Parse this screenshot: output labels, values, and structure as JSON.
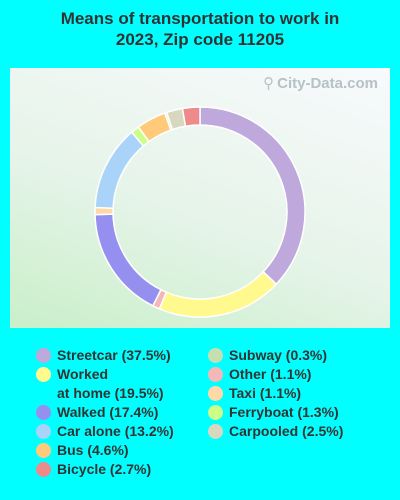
{
  "title_line1": "Means of transportation to work in",
  "title_line2": "2023, Zip code 11205",
  "watermark": "City-Data.com",
  "chart_data": {
    "type": "pie",
    "donut": true,
    "title": "Means of transportation to work in 2023, Zip code 11205",
    "slices": [
      {
        "label": "Streetcar",
        "value": 37.5,
        "color": "#BFA8DC"
      },
      {
        "label": "Worked at home",
        "value": 19.5,
        "color": "#FFF98E"
      },
      {
        "label": "Other",
        "value": 1.1,
        "color": "#F4B8B8"
      },
      {
        "label": "Walked",
        "value": 17.4,
        "color": "#9590F0"
      },
      {
        "label": "Taxi",
        "value": 1.1,
        "color": "#FFD8A8"
      },
      {
        "label": "Car alone",
        "value": 13.2,
        "color": "#AAD3FA"
      },
      {
        "label": "Ferryboat",
        "value": 1.3,
        "color": "#CCFF88"
      },
      {
        "label": "Bus",
        "value": 4.6,
        "color": "#FFCA7A"
      },
      {
        "label": "Subway",
        "value": 0.3,
        "color": "#C6DFB0"
      },
      {
        "label": "Carpooled",
        "value": 2.5,
        "color": "#D8D8BE"
      },
      {
        "label": "Bicycle",
        "value": 2.7,
        "color": "#EE8A8A"
      }
    ]
  },
  "legend": {
    "left": [
      {
        "text": "Streetcar (37.5%)",
        "color": "#BFA8DC"
      },
      {
        "text": "Worked\nat home (19.5%)",
        "color": "#FFF98E"
      },
      {
        "text": "Walked (17.4%)",
        "color": "#9590F0"
      },
      {
        "text": "Car alone (13.2%)",
        "color": "#AAD3FA"
      },
      {
        "text": "Bus (4.6%)",
        "color": "#FFCA7A"
      },
      {
        "text": "Bicycle (2.7%)",
        "color": "#EE8A8A"
      }
    ],
    "right": [
      {
        "text": "Subway (0.3%)",
        "color": "#C6DFB0"
      },
      {
        "text": "Other (1.1%)",
        "color": "#F4B8B8"
      },
      {
        "text": "Taxi (1.1%)",
        "color": "#FFD8A8"
      },
      {
        "text": "Ferryboat (1.3%)",
        "color": "#CCFF88"
      },
      {
        "text": "Carpooled (2.5%)",
        "color": "#D8D8BE"
      }
    ]
  }
}
